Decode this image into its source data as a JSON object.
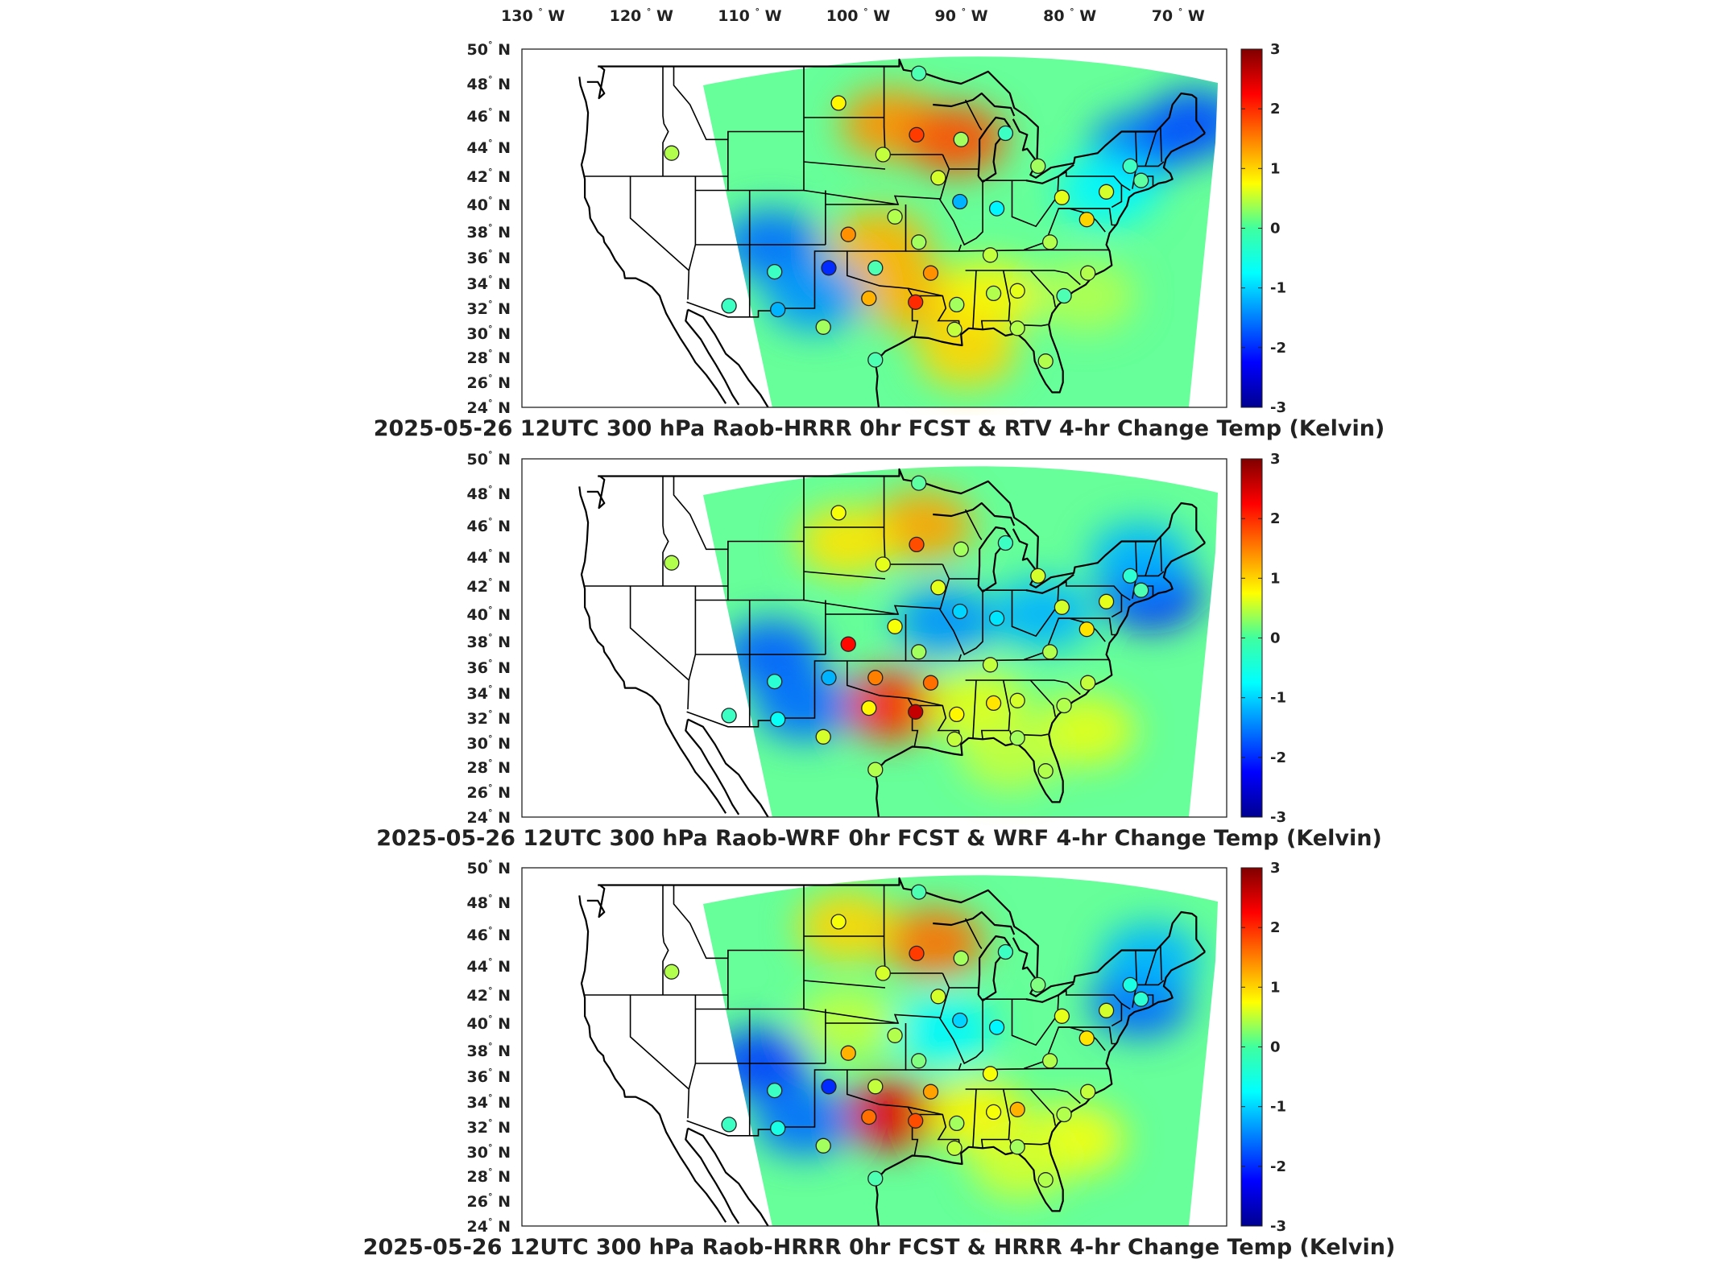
{
  "figure": {
    "lon_labels": [
      "130",
      "120",
      "110",
      "100",
      "90",
      "80",
      "70"
    ],
    "lon_suffix": "W",
    "lat_labels": [
      "50",
      "48",
      "46",
      "44",
      "42",
      "40",
      "38",
      "36",
      "34",
      "32",
      "30",
      "28",
      "26",
      "24"
    ],
    "lat_suffix": "N",
    "degree_symbol": "°"
  },
  "chart_data": [
    {
      "type": "heatmap",
      "title": "2025-05-26 12UTC 300 hPa Raob-HRRR 0hr FCST & RTV 4-hr Change Temp (Kelvin)",
      "colorbar": {
        "ticks": [
          3,
          2,
          1,
          0,
          -1,
          -2,
          -3
        ],
        "range": [
          -3,
          3
        ],
        "colormap": "jet"
      },
      "xlim": [
        -130,
        -65
      ],
      "ylim": [
        24,
        50
      ],
      "grid": false,
      "field_blobs": [
        {
          "lon": -96,
          "lat": 45.5,
          "value": 1.4
        },
        {
          "lon": -90,
          "lat": 44.5,
          "value": 1.8
        },
        {
          "lon": -97,
          "lat": 37,
          "value": 1.2
        },
        {
          "lon": -94,
          "lat": 33,
          "value": 1.2
        },
        {
          "lon": -87,
          "lat": 33,
          "value": 0.8
        },
        {
          "lon": -89,
          "lat": 28.5,
          "value": 1.0
        },
        {
          "lon": -107,
          "lat": 37,
          "value": -1.6
        },
        {
          "lon": -103,
          "lat": 33,
          "value": -1.4
        },
        {
          "lon": -73,
          "lat": 44,
          "value": -1.6
        },
        {
          "lon": -68,
          "lat": 45.5,
          "value": -1.8
        },
        {
          "lon": -76,
          "lat": 41,
          "value": -0.8
        },
        {
          "lon": -78,
          "lat": 33,
          "value": 0.3
        }
      ],
      "raobs": [
        {
          "lon": -93.4,
          "lat": 48.6,
          "value": -0.3
        },
        {
          "lon": -100.8,
          "lat": 46.8,
          "value": 0.8
        },
        {
          "lon": -93.6,
          "lat": 44.8,
          "value": 1.9
        },
        {
          "lon": -89.5,
          "lat": 44.5,
          "value": 0.2
        },
        {
          "lon": -85.4,
          "lat": 44.9,
          "value": -0.4
        },
        {
          "lon": -82.4,
          "lat": 42.7,
          "value": 0.2
        },
        {
          "lon": -116.2,
          "lat": 43.6,
          "value": 0.3
        },
        {
          "lon": -96.7,
          "lat": 43.5,
          "value": 0.4
        },
        {
          "lon": -91.6,
          "lat": 41.9,
          "value": 0.5
        },
        {
          "lon": -89.6,
          "lat": 40.2,
          "value": -1.2
        },
        {
          "lon": -86.2,
          "lat": 39.7,
          "value": -0.8
        },
        {
          "lon": -80.2,
          "lat": 40.5,
          "value": 0.6
        },
        {
          "lon": -99.9,
          "lat": 37.8,
          "value": 1.4
        },
        {
          "lon": -95.6,
          "lat": 39.1,
          "value": 0.3
        },
        {
          "lon": -93.4,
          "lat": 37.2,
          "value": 0.2
        },
        {
          "lon": -86.8,
          "lat": 36.2,
          "value": 0.4
        },
        {
          "lon": -81.3,
          "lat": 37.2,
          "value": 0.3
        },
        {
          "lon": -77.9,
          "lat": 38.9,
          "value": 1.0
        },
        {
          "lon": -76.1,
          "lat": 40.9,
          "value": 0.5
        },
        {
          "lon": -72.9,
          "lat": 41.7,
          "value": -0.2
        },
        {
          "lon": -73.9,
          "lat": 42.7,
          "value": -0.4
        },
        {
          "lon": -106.7,
          "lat": 34.9,
          "value": -0.4
        },
        {
          "lon": -101.7,
          "lat": 35.2,
          "value": -2.0
        },
        {
          "lon": -97.4,
          "lat": 35.2,
          "value": -0.3
        },
        {
          "lon": -92.3,
          "lat": 34.8,
          "value": 1.4
        },
        {
          "lon": -98.0,
          "lat": 32.8,
          "value": 1.2
        },
        {
          "lon": -93.7,
          "lat": 32.5,
          "value": 2.0
        },
        {
          "lon": -89.9,
          "lat": 32.3,
          "value": 0.2
        },
        {
          "lon": -86.5,
          "lat": 33.2,
          "value": 0.3
        },
        {
          "lon": -84.3,
          "lat": 33.4,
          "value": 0.6
        },
        {
          "lon": -80.0,
          "lat": 33.0,
          "value": -0.3
        },
        {
          "lon": -77.8,
          "lat": 34.8,
          "value": 0.3
        },
        {
          "lon": -110.9,
          "lat": 32.2,
          "value": -0.4
        },
        {
          "lon": -106.4,
          "lat": 31.9,
          "value": -1.2
        },
        {
          "lon": -102.2,
          "lat": 30.5,
          "value": 0.2
        },
        {
          "lon": -97.4,
          "lat": 27.8,
          "value": -0.3
        },
        {
          "lon": -90.1,
          "lat": 30.3,
          "value": 0.4
        },
        {
          "lon": -84.3,
          "lat": 30.4,
          "value": 0.3
        },
        {
          "lon": -81.7,
          "lat": 27.7,
          "value": 0.3
        }
      ]
    },
    {
      "type": "heatmap",
      "title": "2025-05-26 12UTC 300 hPa Raob-WRF 0hr FCST & WRF 4-hr Change Temp (Kelvin)",
      "colorbar": {
        "ticks": [
          3,
          2,
          1,
          0,
          -1,
          -2,
          -3
        ],
        "range": [
          -3,
          3
        ],
        "colormap": "jet"
      },
      "xlim": [
        -130,
        -65
      ],
      "ylim": [
        24,
        50
      ],
      "grid": false,
      "field_blobs": [
        {
          "lon": -93,
          "lat": 46,
          "value": 1.3
        },
        {
          "lon": -100,
          "lat": 45,
          "value": 0.9
        },
        {
          "lon": -96,
          "lat": 33,
          "value": 2.0
        },
        {
          "lon": -88,
          "lat": 33,
          "value": 0.6
        },
        {
          "lon": -107,
          "lat": 37,
          "value": -1.7
        },
        {
          "lon": -104,
          "lat": 33,
          "value": -1.6
        },
        {
          "lon": -91,
          "lat": 39.5,
          "value": -1.4
        },
        {
          "lon": -82,
          "lat": 40,
          "value": -1.2
        },
        {
          "lon": -72,
          "lat": 41.5,
          "value": -2.2
        },
        {
          "lon": -73,
          "lat": 44,
          "value": -1.2
        },
        {
          "lon": -78,
          "lat": 31,
          "value": 0.6
        },
        {
          "lon": -85,
          "lat": 29,
          "value": 0.4
        }
      ],
      "raobs": [
        {
          "lon": -93.4,
          "lat": 48.6,
          "value": -0.2
        },
        {
          "lon": -100.8,
          "lat": 46.8,
          "value": 0.7
        },
        {
          "lon": -93.6,
          "lat": 44.8,
          "value": 1.8
        },
        {
          "lon": -89.5,
          "lat": 44.5,
          "value": 0.2
        },
        {
          "lon": -85.4,
          "lat": 44.9,
          "value": -0.4
        },
        {
          "lon": -82.4,
          "lat": 42.7,
          "value": 0.5
        },
        {
          "lon": -116.2,
          "lat": 43.6,
          "value": 0.3
        },
        {
          "lon": -96.7,
          "lat": 43.5,
          "value": 0.6
        },
        {
          "lon": -91.6,
          "lat": 41.9,
          "value": 0.6
        },
        {
          "lon": -89.6,
          "lat": 40.2,
          "value": -1.0
        },
        {
          "lon": -86.2,
          "lat": 39.7,
          "value": -0.9
        },
        {
          "lon": -80.2,
          "lat": 40.5,
          "value": 0.5
        },
        {
          "lon": -99.9,
          "lat": 37.8,
          "value": 2.2
        },
        {
          "lon": -95.6,
          "lat": 39.1,
          "value": 0.7
        },
        {
          "lon": -93.4,
          "lat": 37.2,
          "value": 0.2
        },
        {
          "lon": -86.8,
          "lat": 36.2,
          "value": 0.4
        },
        {
          "lon": -81.3,
          "lat": 37.2,
          "value": 0.3
        },
        {
          "lon": -77.9,
          "lat": 38.9,
          "value": 0.9
        },
        {
          "lon": -76.1,
          "lat": 40.9,
          "value": 0.6
        },
        {
          "lon": -72.9,
          "lat": 41.7,
          "value": -0.3
        },
        {
          "lon": -73.9,
          "lat": 42.7,
          "value": -0.5
        },
        {
          "lon": -106.7,
          "lat": 34.9,
          "value": -0.5
        },
        {
          "lon": -101.7,
          "lat": 35.2,
          "value": -1.2
        },
        {
          "lon": -97.4,
          "lat": 35.2,
          "value": 1.5
        },
        {
          "lon": -92.3,
          "lat": 34.8,
          "value": 1.6
        },
        {
          "lon": -98.0,
          "lat": 32.8,
          "value": 0.8
        },
        {
          "lon": -93.7,
          "lat": 32.5,
          "value": 2.6
        },
        {
          "lon": -89.9,
          "lat": 32.3,
          "value": 0.8
        },
        {
          "lon": -86.5,
          "lat": 33.2,
          "value": 0.9
        },
        {
          "lon": -84.3,
          "lat": 33.4,
          "value": 0.5
        },
        {
          "lon": -80.0,
          "lat": 33.0,
          "value": 0.3
        },
        {
          "lon": -77.8,
          "lat": 34.8,
          "value": 0.4
        },
        {
          "lon": -110.9,
          "lat": 32.2,
          "value": -0.4
        },
        {
          "lon": -106.4,
          "lat": 31.9,
          "value": -0.7
        },
        {
          "lon": -102.2,
          "lat": 30.5,
          "value": 0.5
        },
        {
          "lon": -97.4,
          "lat": 27.8,
          "value": 0.3
        },
        {
          "lon": -90.1,
          "lat": 30.3,
          "value": 0.4
        },
        {
          "lon": -84.3,
          "lat": 30.4,
          "value": 0.2
        },
        {
          "lon": -81.7,
          "lat": 27.7,
          "value": 0.3
        }
      ]
    },
    {
      "type": "heatmap",
      "title": "2025-05-26 12UTC 300 hPa Raob-HRRR 0hr FCST & HRRR 4-hr Change Temp (Kelvin)",
      "colorbar": {
        "ticks": [
          3,
          2,
          1,
          0,
          -1,
          -2,
          -3
        ],
        "range": [
          -3,
          3
        ],
        "colormap": "jet"
      },
      "xlim": [
        -130,
        -65
      ],
      "ylim": [
        24,
        50
      ],
      "grid": false,
      "field_blobs": [
        {
          "lon": -92,
          "lat": 45.5,
          "value": 1.6
        },
        {
          "lon": -100,
          "lat": 46.5,
          "value": 1.0
        },
        {
          "lon": -96,
          "lat": 33,
          "value": 2.4
        },
        {
          "lon": -88,
          "lat": 33,
          "value": 0.8
        },
        {
          "lon": -79,
          "lat": 31,
          "value": 0.7
        },
        {
          "lon": -108,
          "lat": 37,
          "value": -1.9
        },
        {
          "lon": -104,
          "lat": 32.5,
          "value": -1.6
        },
        {
          "lon": -73,
          "lat": 41.5,
          "value": -1.7
        },
        {
          "lon": -72,
          "lat": 44.5,
          "value": -1.2
        },
        {
          "lon": -91,
          "lat": 39.5,
          "value": -0.8
        },
        {
          "lon": -84,
          "lat": 29,
          "value": 0.5
        },
        {
          "lon": -100,
          "lat": 40,
          "value": 0.4
        }
      ],
      "raobs": [
        {
          "lon": -93.4,
          "lat": 48.6,
          "value": -0.3
        },
        {
          "lon": -100.8,
          "lat": 46.8,
          "value": 0.7
        },
        {
          "lon": -93.6,
          "lat": 44.8,
          "value": 1.9
        },
        {
          "lon": -89.5,
          "lat": 44.5,
          "value": 0.2
        },
        {
          "lon": -85.4,
          "lat": 44.9,
          "value": -0.4
        },
        {
          "lon": -82.4,
          "lat": 42.7,
          "value": 0.0
        },
        {
          "lon": -116.2,
          "lat": 43.6,
          "value": 0.3
        },
        {
          "lon": -96.7,
          "lat": 43.5,
          "value": 0.5
        },
        {
          "lon": -91.6,
          "lat": 41.9,
          "value": 0.5
        },
        {
          "lon": -89.6,
          "lat": 40.2,
          "value": -1.0
        },
        {
          "lon": -86.2,
          "lat": 39.7,
          "value": -0.8
        },
        {
          "lon": -80.2,
          "lat": 40.5,
          "value": 0.6
        },
        {
          "lon": -99.9,
          "lat": 37.8,
          "value": 1.2
        },
        {
          "lon": -95.6,
          "lat": 39.1,
          "value": 0.3
        },
        {
          "lon": -93.4,
          "lat": 37.2,
          "value": 0.0
        },
        {
          "lon": -86.8,
          "lat": 36.2,
          "value": 0.7
        },
        {
          "lon": -81.3,
          "lat": 37.2,
          "value": 0.3
        },
        {
          "lon": -77.9,
          "lat": 38.9,
          "value": 0.9
        },
        {
          "lon": -76.1,
          "lat": 40.9,
          "value": 0.5
        },
        {
          "lon": -72.9,
          "lat": 41.7,
          "value": -0.5
        },
        {
          "lon": -73.9,
          "lat": 42.7,
          "value": -0.6
        },
        {
          "lon": -106.7,
          "lat": 34.9,
          "value": -0.4
        },
        {
          "lon": -101.7,
          "lat": 35.2,
          "value": -2.0
        },
        {
          "lon": -97.4,
          "lat": 35.2,
          "value": 0.4
        },
        {
          "lon": -92.3,
          "lat": 34.8,
          "value": 1.3
        },
        {
          "lon": -98.0,
          "lat": 32.8,
          "value": 1.6
        },
        {
          "lon": -93.7,
          "lat": 32.5,
          "value": 1.8
        },
        {
          "lon": -89.9,
          "lat": 32.3,
          "value": 0.2
        },
        {
          "lon": -86.5,
          "lat": 33.2,
          "value": 0.7
        },
        {
          "lon": -84.3,
          "lat": 33.4,
          "value": 1.2
        },
        {
          "lon": -80.0,
          "lat": 33.0,
          "value": 0.3
        },
        {
          "lon": -77.8,
          "lat": 34.8,
          "value": 0.4
        },
        {
          "lon": -110.9,
          "lat": 32.2,
          "value": -0.4
        },
        {
          "lon": -106.4,
          "lat": 31.9,
          "value": -0.6
        },
        {
          "lon": -102.2,
          "lat": 30.5,
          "value": 0.2
        },
        {
          "lon": -97.4,
          "lat": 27.8,
          "value": -0.3
        },
        {
          "lon": -90.1,
          "lat": 30.3,
          "value": 0.4
        },
        {
          "lon": -84.3,
          "lat": 30.4,
          "value": 0.2
        },
        {
          "lon": -81.7,
          "lat": 27.7,
          "value": 0.3
        }
      ]
    }
  ]
}
